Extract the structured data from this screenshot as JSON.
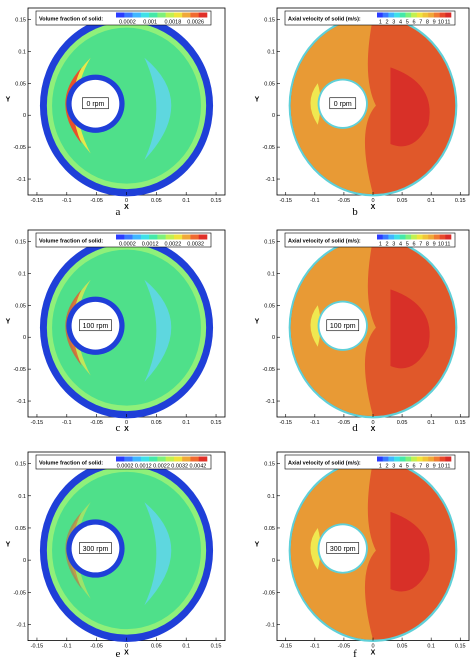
{
  "figure": {
    "panels": [
      {
        "id": "a",
        "caption": "a",
        "legend_title": "Volume fraction of solid:",
        "legend_ticks": [
          "0.0002",
          "0.001",
          "0.0018",
          "0.0026"
        ],
        "rpm_label": "0 rpm",
        "x_axis_label": "X",
        "y_axis_label": "Y",
        "x_ticks": [
          "-0.15",
          "-0.1",
          "-0.05",
          "0",
          "0.05",
          "0.1",
          "0.15"
        ],
        "y_ticks": [
          "0.15",
          "0.1",
          "0.05",
          "0",
          "-0.05",
          "-0.1"
        ],
        "field": "volume_fraction"
      },
      {
        "id": "b",
        "caption": "b",
        "legend_title": "Axial velocity of solid (m/s):",
        "legend_ticks": [
          "1",
          "2",
          "3",
          "4",
          "5",
          "6",
          "7",
          "8",
          "9",
          "10",
          "11"
        ],
        "rpm_label": "0 rpm",
        "x_axis_label": "X",
        "y_axis_label": "Y",
        "x_ticks": [
          "-0.15",
          "-0.1",
          "-0.05",
          "0",
          "0.05",
          "0.1",
          "0.15"
        ],
        "y_ticks": [
          "0.15",
          "0.1",
          "0.05",
          "0",
          "-0.05",
          "-0.1"
        ],
        "field": "axial_velocity"
      },
      {
        "id": "c",
        "caption": "c",
        "legend_title": "Volume fraction of solid:",
        "legend_ticks": [
          "0.0002",
          "0.0012",
          "0.0022",
          "0.0032"
        ],
        "rpm_label": "100 rpm",
        "x_axis_label": "X",
        "y_axis_label": "Y",
        "x_ticks": [
          "-0.15",
          "-0.1",
          "-0.05",
          "0",
          "0.05",
          "0.1",
          "0.15"
        ],
        "y_ticks": [
          "0.15",
          "0.1",
          "0.05",
          "0",
          "-0.05",
          "-0.1"
        ],
        "field": "volume_fraction"
      },
      {
        "id": "d",
        "caption": "d",
        "legend_title": "Axial velocity of solid (m/s):",
        "legend_ticks": [
          "1",
          "2",
          "3",
          "4",
          "5",
          "6",
          "7",
          "8",
          "9",
          "10",
          "11"
        ],
        "rpm_label": "100 rpm",
        "x_axis_label": "X",
        "y_axis_label": "Y",
        "x_ticks": [
          "-0.15",
          "-0.1",
          "-0.05",
          "0",
          "0.05",
          "0.1",
          "0.15"
        ],
        "y_ticks": [
          "0.15",
          "0.1",
          "0.05",
          "0",
          "-0.05",
          "-0.1"
        ],
        "field": "axial_velocity"
      },
      {
        "id": "e",
        "caption": "e",
        "legend_title": "Volume fraction of solid:",
        "legend_ticks": [
          "0.0002",
          "0.0012",
          "0.0022",
          "0.0032",
          "0.0042"
        ],
        "rpm_label": "300 rpm",
        "x_axis_label": "X",
        "y_axis_label": "Y",
        "x_ticks": [
          "-0.15",
          "-0.1",
          "-0.05",
          "0",
          "0.05",
          "0.1",
          "0.15"
        ],
        "y_ticks": [
          "0.15",
          "0.1",
          "0.05",
          "0",
          "-0.05",
          "-0.1"
        ],
        "field": "volume_fraction"
      },
      {
        "id": "f",
        "caption": "f",
        "legend_title": "Axial velocity of solid (m/s):",
        "legend_ticks": [
          "1",
          "2",
          "3",
          "4",
          "5",
          "6",
          "7",
          "8",
          "9",
          "10",
          "11"
        ],
        "rpm_label": "300 rpm",
        "x_axis_label": "X",
        "y_axis_label": "Y",
        "x_ticks": [
          "-0.15",
          "-0.1",
          "-0.05",
          "0",
          "0.05",
          "0.1",
          "0.15"
        ],
        "y_ticks": [
          "0.15",
          "0.1",
          "0.05",
          "0",
          "-0.05",
          "-0.1"
        ],
        "field": "axial_velocity"
      }
    ],
    "colors": {
      "annulus_wall_blue": "#1f3fd8",
      "vf_background_green": "#4fe08a",
      "vf_light_green": "#8ff07a",
      "vf_cyan_region": "#5fd6e8",
      "vf_high_red": "#e8502a",
      "vf_high_yellow": "#e8e84a",
      "vel_orange": "#e89a35",
      "vel_dark_orange": "#e0582a",
      "vel_red": "#d83028",
      "vel_yellow": "#f0e850",
      "vel_wall_cyan": "#5fd0d8"
    }
  }
}
